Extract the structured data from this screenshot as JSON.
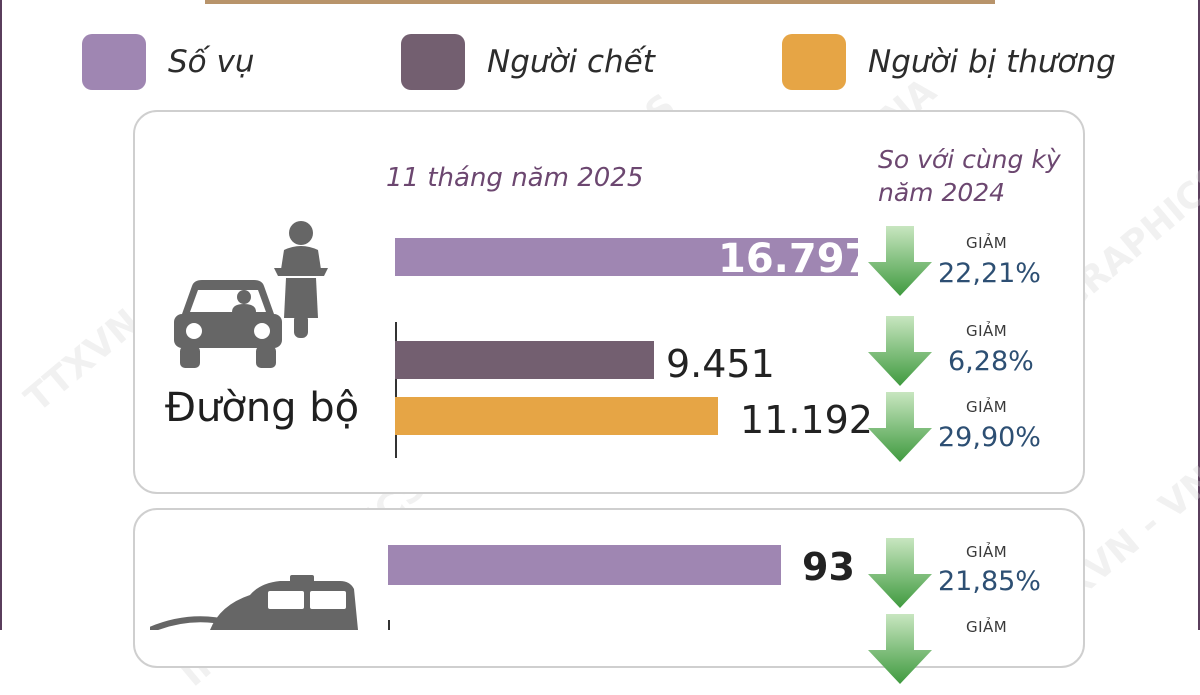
{
  "legend": [
    {
      "label": "Số vụ",
      "color": "#9f86b2"
    },
    {
      "label": "Người chết",
      "color": "#735f70"
    },
    {
      "label": "Người bị thương",
      "color": "#e6a545"
    }
  ],
  "road": {
    "category": "Đường bộ",
    "period_label": "11 tháng năm 2025",
    "compare_label": "So với cùng kỳ năm 2024",
    "bars": [
      {
        "metric": "Số vụ",
        "value_text": "16.797",
        "change_word": "GIẢM",
        "change_pct": "22,21%"
      },
      {
        "metric": "Người chết",
        "value_text": "9.451",
        "change_word": "GIẢM",
        "change_pct": "6,28%"
      },
      {
        "metric": "Người bị thương",
        "value_text": "11.192",
        "change_word": "GIẢM",
        "change_pct": "29,90%"
      }
    ]
  },
  "rail": {
    "bars": [
      {
        "metric": "Số vụ",
        "value_text": "93",
        "change_word": "GIẢM",
        "change_pct": "21,85%"
      },
      {
        "metric": "Người chết",
        "value_text": "",
        "change_word": "GIẢM",
        "change_pct": ""
      }
    ]
  },
  "watermarks": [
    "TTXVN - VNA",
    "INFOGRAPHICS"
  ],
  "chart_data": [
    {
      "type": "bar",
      "title": "",
      "category": "Đường bộ",
      "categories": [
        "Số vụ",
        "Người chết",
        "Người bị thương"
      ],
      "values": [
        16797,
        9451,
        11192
      ],
      "change_vs_2024_pct": [
        -22.21,
        -6.28,
        -29.9
      ],
      "colors": [
        "#9f86b2",
        "#735f70",
        "#e6a545"
      ]
    },
    {
      "type": "bar",
      "title": "",
      "categories": [
        "Số vụ"
      ],
      "values": [
        93
      ],
      "change_vs_2024_pct": [
        -21.85
      ],
      "colors": [
        "#9f86b2"
      ]
    }
  ]
}
